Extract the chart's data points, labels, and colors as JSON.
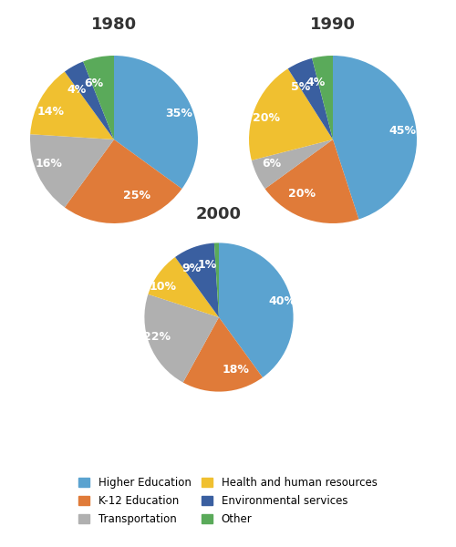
{
  "charts": [
    {
      "title": "1980",
      "values": [
        35,
        25,
        16,
        14,
        4,
        6
      ],
      "labels": [
        "35%",
        "25%",
        "16%",
        "14%",
        "4%",
        "6%"
      ],
      "startangle": 90
    },
    {
      "title": "1990",
      "values": [
        45,
        20,
        6,
        20,
        5,
        4
      ],
      "labels": [
        "45%",
        "20%",
        "6%",
        "20%",
        "5%",
        "4%"
      ],
      "startangle": 90
    },
    {
      "title": "2000",
      "values": [
        40,
        18,
        22,
        10,
        9,
        1
      ],
      "labels": [
        "40%",
        "18%",
        "22%",
        "10%",
        "9%",
        "1%"
      ],
      "startangle": 90
    }
  ],
  "colors": [
    "#5ba3d0",
    "#e07b39",
    "#b0b0b0",
    "#f0c030",
    "#3a5fa0",
    "#5aaa5a"
  ],
  "legend_labels": [
    "Higher Education",
    "K-12 Education",
    "Transportation",
    "Health and human resources",
    "Environmental services",
    "Other"
  ],
  "bg_color": "#ffffff",
  "title_fontsize": 13,
  "label_fontsize": 9
}
